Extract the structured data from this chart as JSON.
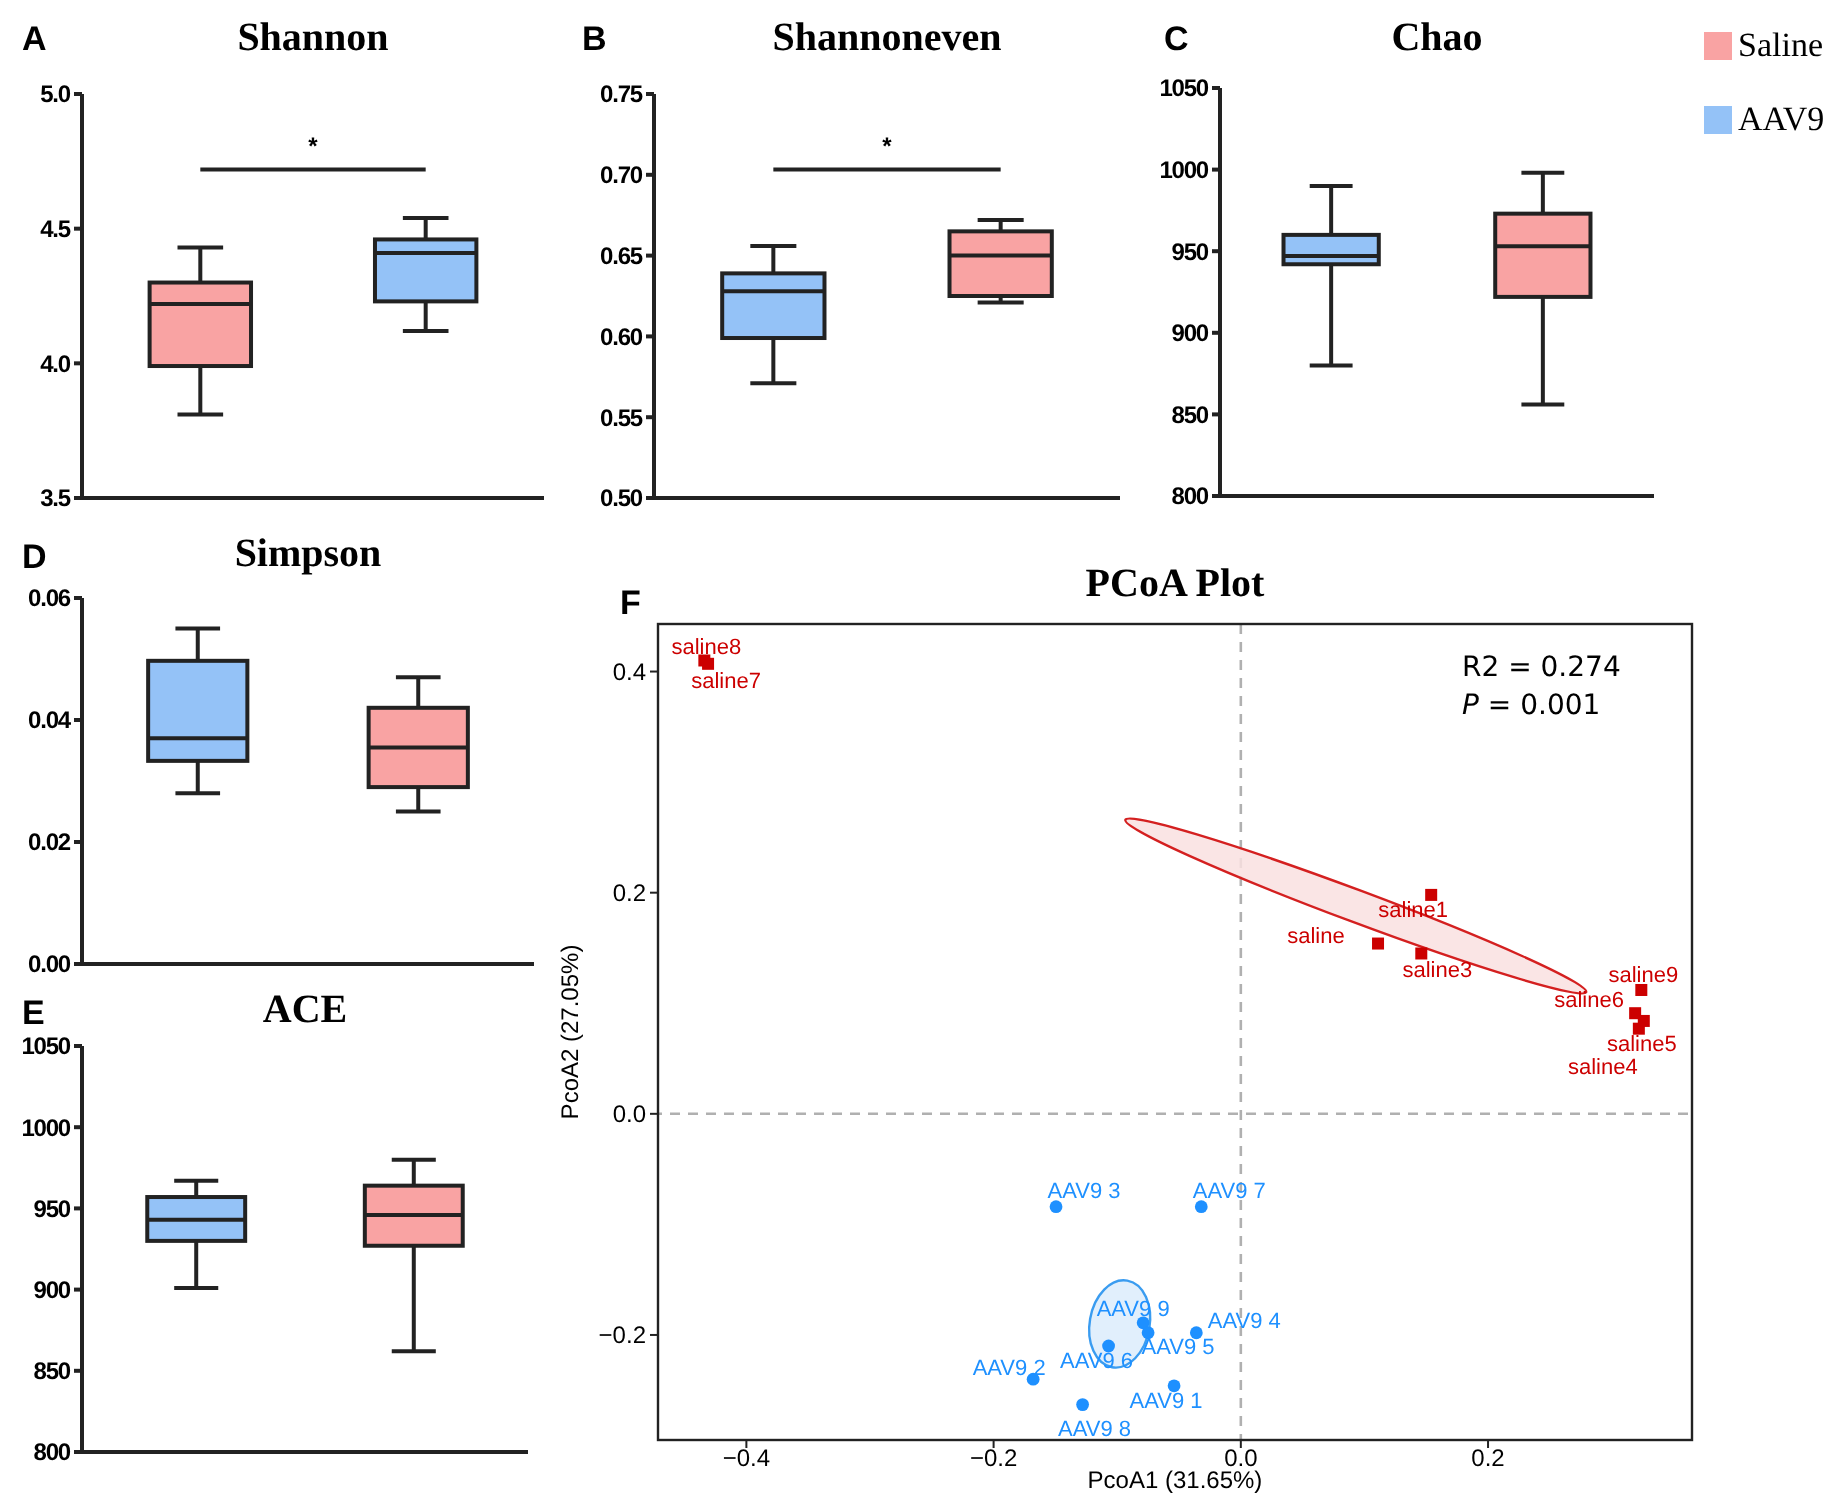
{
  "chart_data": [
    {
      "type": "box",
      "title": "Shannon",
      "categories": [
        null,
        null
      ],
      "tick_labels": "y",
      "annotations": [
        "A",
        "*"
      ],
      "ylim": [
        3.5,
        5.0
      ],
      "yticks": [
        3.5,
        {
          "value": 4.0,
          "label": "4.0"
        },
        4.5,
        {
          "value": 5.0,
          "label": "5.0"
        }
      ],
      "series": [
        {
          "color": "#f9a3a3",
          "boxes": [
            {
              "low": 3.81,
              "q1": 3.99,
              "median": 4.22,
              "q3": 4.3,
              "high": 4.43
            },
            null
          ]
        },
        {
          "color": "#94c2f7",
          "boxes": [
            null,
            {
              "low": 4.12,
              "q1": 4.23,
              "median": 4.41,
              "q3": 4.46,
              "high": 4.54
            }
          ]
        }
      ]
    },
    {
      "type": "box",
      "title": "Shannoneven",
      "categories": [
        null,
        null
      ],
      "tick_labels": "y",
      "annotations": [
        "B",
        "*"
      ],
      "ylim": [
        0.5,
        0.75
      ],
      "yticks": [
        {
          "value": 0.5,
          "label": "0.50"
        },
        0.55,
        {
          "value": 0.6,
          "label": "0.60"
        },
        0.65,
        {
          "value": 0.7,
          "label": "0.70"
        },
        0.75
      ],
      "series": [
        {
          "color": "#94c2f7",
          "boxes": [
            {
              "low": 0.571,
              "q1": 0.599,
              "median": 0.628,
              "q3": 0.639,
              "high": 0.656
            },
            null
          ]
        },
        {
          "color": "#f9a3a3",
          "boxes": [
            null,
            {
              "low": 0.621,
              "q1": 0.625,
              "median": 0.65,
              "q3": 0.665,
              "high": 0.672
            }
          ]
        }
      ]
    },
    {
      "type": "box",
      "title": "Chao",
      "categories": [
        null,
        null
      ],
      "tick_labels": "y",
      "annotations": [
        "C"
      ],
      "legend": "right",
      "ylim": [
        800,
        1050
      ],
      "yticks": [
        800,
        850,
        900,
        950,
        1000,
        1050
      ],
      "series": [
        {
          "name": "Saline",
          "color": "#f9a3a3",
          "boxes": [
            null,
            {
              "low": 856,
              "q1": 922,
              "median": 953,
              "q3": 973,
              "high": 998
            }
          ]
        },
        {
          "name": "AAV9",
          "color": "#94c2f7",
          "boxes": [
            {
              "low": 880,
              "q1": 942,
              "median": 947,
              "q3": 960,
              "high": 990
            },
            null
          ]
        }
      ]
    },
    {
      "type": "box",
      "title": "Simpson",
      "categories": [
        null,
        null
      ],
      "tick_labels": "y",
      "annotations": [
        "D"
      ],
      "ylim": [
        0,
        0.06
      ],
      "yticks": [
        {
          "value": 0,
          "label": "0.00"
        },
        0.02,
        0.04,
        0.06
      ],
      "series": [
        {
          "color": "#94c2f7",
          "boxes": [
            {
              "low": 0.028,
              "q1": 0.0333,
              "median": 0.037,
              "q3": 0.0497,
              "high": 0.055
            },
            null
          ]
        },
        {
          "color": "#f9a3a3",
          "boxes": [
            null,
            {
              "low": 0.025,
              "q1": 0.029,
              "median": 0.0355,
              "q3": 0.042,
              "high": 0.047
            }
          ]
        }
      ]
    },
    {
      "type": "box",
      "title": "ACE",
      "categories": [
        null,
        null
      ],
      "tick_labels": "y",
      "annotations": [
        "E"
      ],
      "ylim": [
        800,
        1050
      ],
      "yticks": [
        800,
        850,
        900,
        950,
        1000,
        1050
      ],
      "series": [
        {
          "color": "#94c2f7",
          "boxes": [
            {
              "low": 901,
              "q1": 930,
              "median": 943,
              "q3": 957,
              "high": 967
            },
            null
          ]
        },
        {
          "color": "#f9a3a3",
          "boxes": [
            null,
            {
              "low": 862,
              "q1": 927,
              "median": 946,
              "q3": 964,
              "high": 980
            }
          ]
        }
      ]
    },
    {
      "type": "scatter",
      "title": "PCoA Plot",
      "xlabel": "PcoA1 (31.65%)",
      "ylabel": "PcoA2 (27.05%)",
      "grid": false,
      "xlim": [
        -0.4715,
        0.365
      ],
      "ylim": [
        -0.295,
        0.443
      ],
      "xticks": [
        {
          "value": -0.4,
          "label": "−0.4"
        },
        {
          "value": -0.2,
          "label": "−0.2"
        },
        {
          "value": 0,
          "label": "0.0"
        },
        0.2
      ],
      "yticks": [
        {
          "value": -0.2,
          "label": "−0.2"
        },
        {
          "value": 0,
          "label": "0.0"
        },
        0.2,
        0.4
      ],
      "ref_lines": [
        {
          "axis": "x",
          "value": 0,
          "color": "#b0b0b0",
          "line_style": "dashed"
        },
        {
          "axis": "y",
          "value": 0,
          "color": "#b0b0b0",
          "line_style": "dashed"
        }
      ],
      "series": [
        {
          "color": "#cc0000",
          "marker": "square",
          "x": [
            -0.434,
            -0.431,
            0.154,
            0.111,
            0.146,
            0.324,
            0.319,
            0.326,
            0.322
          ],
          "values": [
            0.41,
            0.407,
            0.198,
            0.154,
            0.145,
            0.112,
            0.091,
            0.084,
            0.077
          ]
        },
        {
          "color": "#1e90ff",
          "marker": "circle",
          "x": [
            -0.1495,
            -0.032,
            -0.079,
            -0.075,
            -0.036,
            -0.107,
            -0.168,
            -0.054,
            -0.128
          ],
          "values": [
            -0.084,
            -0.084,
            -0.189,
            -0.198,
            -0.198,
            -0.21,
            -0.24,
            -0.246,
            -0.263
          ]
        }
      ],
      "annotations": [
        "F",
        "R2 = 0.274",
        "P = 0.001",
        {
          "text": "saline8",
          "x": -0.434,
          "y": 0.41
        },
        {
          "text": "saline7",
          "x": -0.431,
          "y": 0.407
        },
        {
          "text": "saline1",
          "x": 0.154,
          "y": 0.198
        },
        {
          "text": "saline",
          "x": 0.111,
          "y": 0.154
        },
        {
          "text": "saline3",
          "x": 0.146,
          "y": 0.145
        },
        {
          "text": "saline9",
          "x": 0.324,
          "y": 0.112
        },
        {
          "text": "saline6",
          "x": 0.319,
          "y": 0.091
        },
        {
          "text": "saline5",
          "x": 0.326,
          "y": 0.084
        },
        {
          "text": "saline4",
          "x": 0.322,
          "y": 0.077
        },
        {
          "text": "AAV9 3",
          "x": -0.1495,
          "y": -0.084
        },
        {
          "text": "AAV9 7",
          "x": -0.032,
          "y": -0.084
        },
        {
          "text": "AAV9 9",
          "x": -0.079,
          "y": -0.189
        },
        {
          "text": "AAV9 5",
          "x": -0.075,
          "y": -0.198
        },
        {
          "text": "AAV9 4",
          "x": -0.036,
          "y": -0.198
        },
        {
          "text": "AAV9 6",
          "x": -0.107,
          "y": -0.21
        },
        {
          "text": "AAV9 2",
          "x": -0.168,
          "y": -0.24
        },
        {
          "text": "AAV9 1",
          "x": -0.054,
          "y": -0.246
        },
        {
          "text": "AAV9 8",
          "x": -0.128,
          "y": -0.263
        }
      ]
    }
  ]
}
